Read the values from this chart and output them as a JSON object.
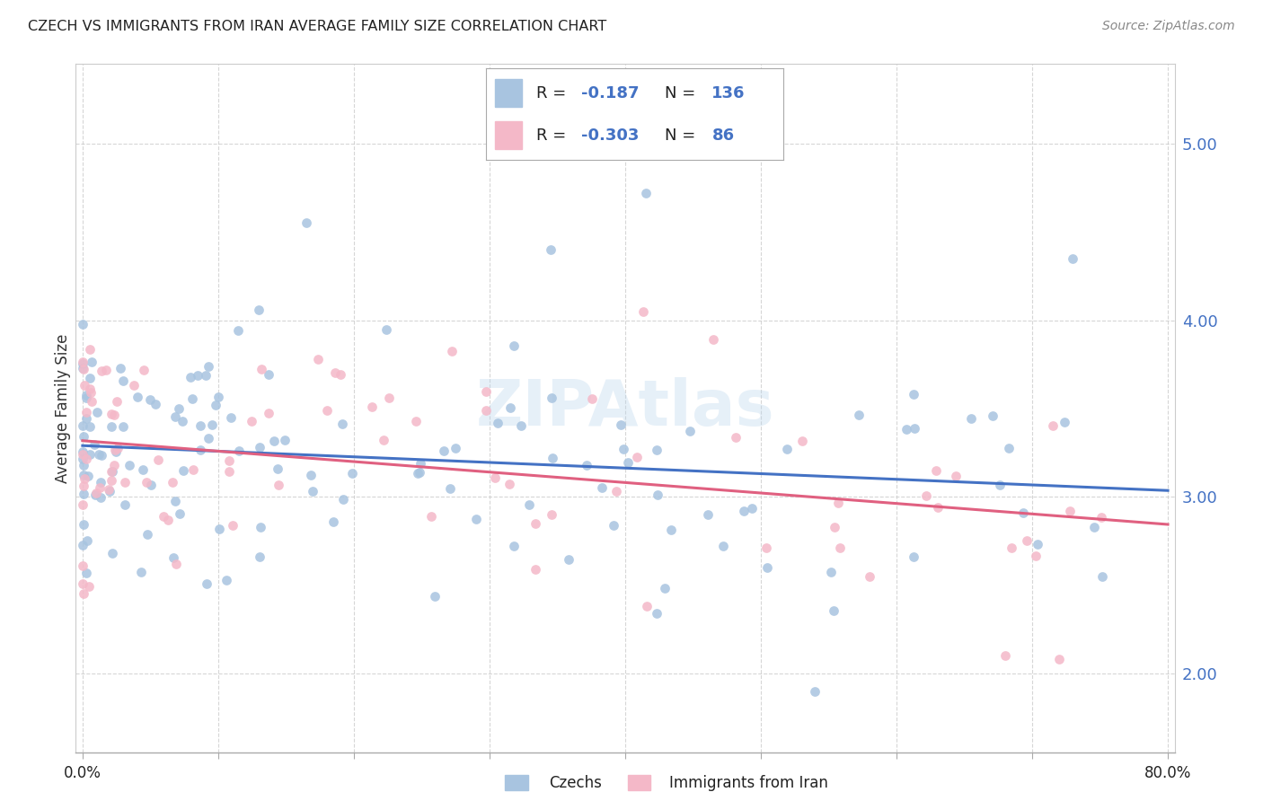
{
  "title": "CZECH VS IMMIGRANTS FROM IRAN AVERAGE FAMILY SIZE CORRELATION CHART",
  "source": "Source: ZipAtlas.com",
  "ylabel": "Average Family Size",
  "yticks": [
    2.0,
    3.0,
    4.0,
    5.0
  ],
  "ylim": [
    1.55,
    5.45
  ],
  "xlim": [
    -0.005,
    0.805
  ],
  "xticks": [
    0.0,
    0.1,
    0.2,
    0.3,
    0.4,
    0.5,
    0.6,
    0.7,
    0.8
  ],
  "xtick_labels": [
    "0.0%",
    "",
    "",
    "",
    "",
    "",
    "",
    "",
    "80.0%"
  ],
  "background_color": "#ffffff",
  "grid_color": "#cccccc",
  "watermark": "ZIPAtlas",
  "series": [
    {
      "name": "Czechs",
      "R": -0.187,
      "N": 136,
      "scatter_color": "#a8c4e0",
      "line_color": "#4472c4"
    },
    {
      "name": "Immigrants from Iran",
      "R": -0.303,
      "N": 86,
      "scatter_color": "#f4b8c8",
      "line_color": "#e06080"
    }
  ]
}
